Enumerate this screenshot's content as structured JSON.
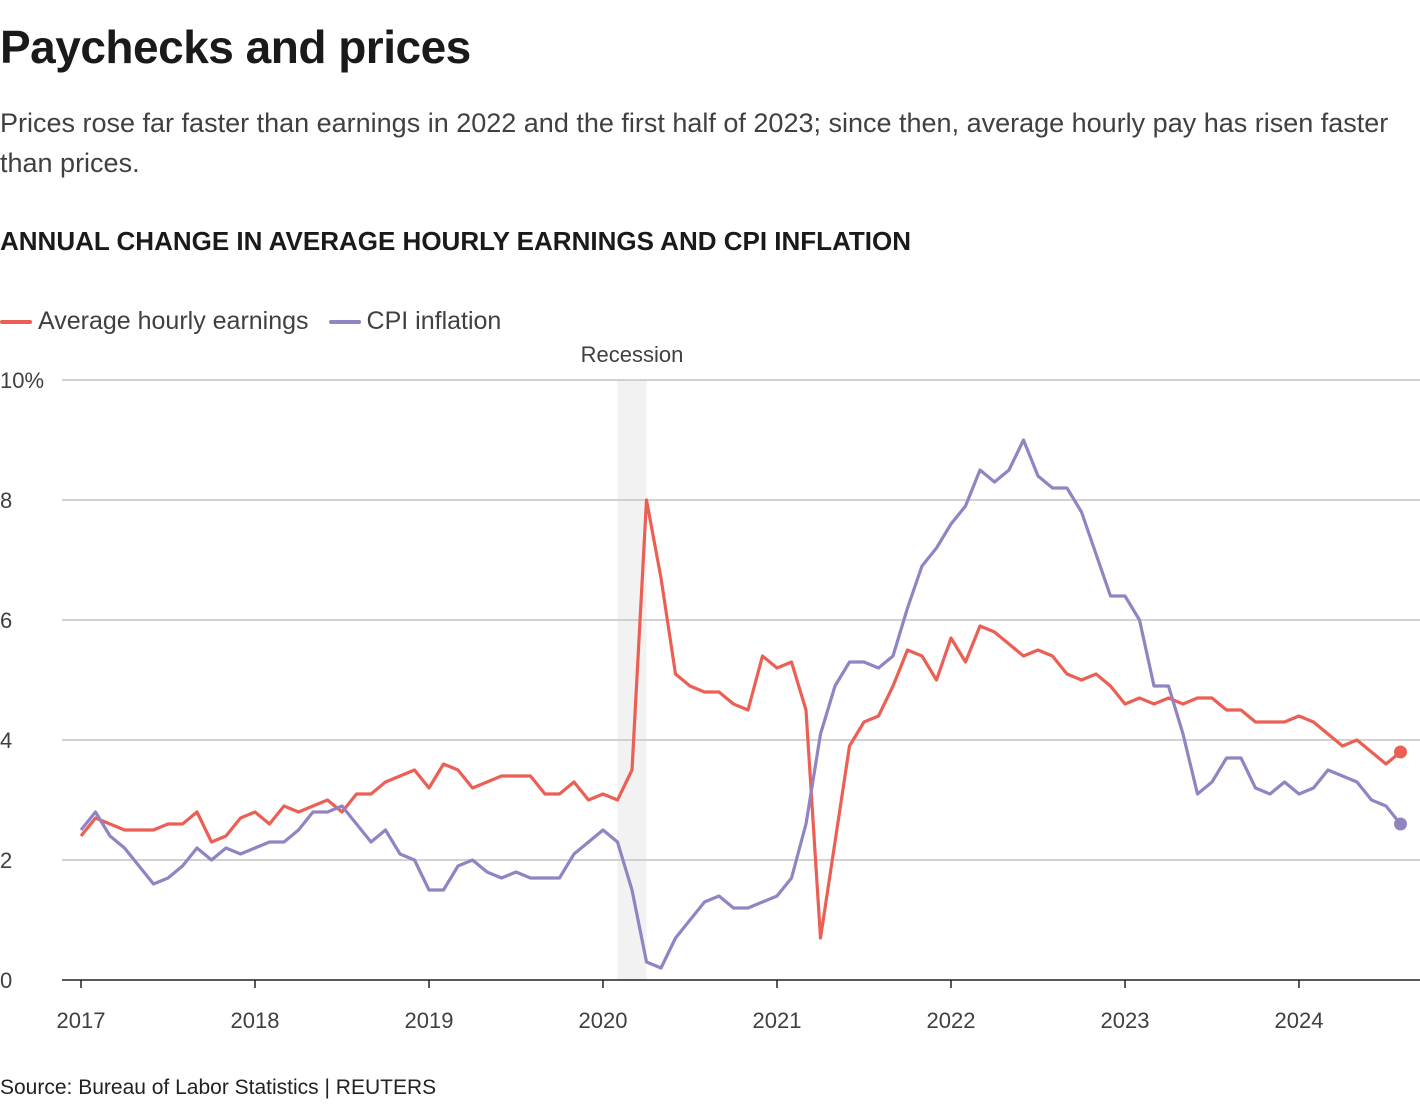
{
  "title": "Paychecks and prices",
  "subtitle": "Prices rose far faster than earnings in 2022 and the first half of 2023; since then, average hourly pay has risen faster than prices.",
  "source": "Source: Bureau of Labor Statistics | REUTERS",
  "chart_data": {
    "type": "line",
    "title": "ANNUAL CHANGE IN AVERAGE HOURLY EARNINGS AND CPI INFLATION",
    "xlabel": "",
    "ylabel": "",
    "x_start": "2017-01",
    "x_frequency": "monthly",
    "x_ticks": [
      "2017",
      "2018",
      "2019",
      "2020",
      "2021",
      "2022",
      "2023",
      "2024"
    ],
    "y_ticks": [
      "0",
      "2",
      "4",
      "6",
      "8",
      "10%"
    ],
    "ylim": [
      0,
      10
    ],
    "grid": true,
    "legend_placement": "top-left",
    "annotation": {
      "label": "Recession",
      "start": "2020-02",
      "end": "2020-04"
    },
    "series": [
      {
        "name": "Average hourly earnings",
        "color": "#eb5f54",
        "values": [
          2.4,
          2.7,
          2.6,
          2.5,
          2.5,
          2.5,
          2.6,
          2.6,
          2.8,
          2.3,
          2.4,
          2.7,
          2.8,
          2.6,
          2.9,
          2.8,
          2.9,
          3.0,
          2.8,
          3.1,
          3.1,
          3.3,
          3.4,
          3.5,
          3.2,
          3.6,
          3.5,
          3.2,
          3.3,
          3.4,
          3.4,
          3.4,
          3.1,
          3.1,
          3.3,
          3.0,
          3.1,
          3.0,
          3.5,
          8.0,
          6.7,
          5.1,
          4.9,
          4.8,
          4.8,
          4.6,
          4.5,
          5.4,
          5.2,
          5.3,
          4.5,
          0.7,
          2.3,
          3.9,
          4.3,
          4.4,
          4.9,
          5.5,
          5.4,
          5.0,
          5.7,
          5.3,
          5.9,
          5.8,
          5.6,
          5.4,
          5.5,
          5.4,
          5.1,
          5.0,
          5.1,
          4.9,
          4.6,
          4.7,
          4.6,
          4.7,
          4.6,
          4.7,
          4.7,
          4.5,
          4.5,
          4.3,
          4.3,
          4.3,
          4.4,
          4.3,
          4.1,
          3.9,
          4.0,
          3.8,
          3.6,
          3.8
        ]
      },
      {
        "name": "CPI inflation",
        "color": "#9283c3",
        "values": [
          2.5,
          2.8,
          2.4,
          2.2,
          1.9,
          1.6,
          1.7,
          1.9,
          2.2,
          2.0,
          2.2,
          2.1,
          2.2,
          2.3,
          2.3,
          2.5,
          2.8,
          2.8,
          2.9,
          2.6,
          2.3,
          2.5,
          2.1,
          2.0,
          1.5,
          1.5,
          1.9,
          2.0,
          1.8,
          1.7,
          1.8,
          1.7,
          1.7,
          1.7,
          2.1,
          2.3,
          2.5,
          2.3,
          1.5,
          0.3,
          0.2,
          0.7,
          1.0,
          1.3,
          1.4,
          1.2,
          1.2,
          1.3,
          1.4,
          1.7,
          2.6,
          4.1,
          4.9,
          5.3,
          5.3,
          5.2,
          5.4,
          6.2,
          6.9,
          7.2,
          7.6,
          7.9,
          8.5,
          8.3,
          8.5,
          9.0,
          8.4,
          8.2,
          8.2,
          7.8,
          7.1,
          6.4,
          6.4,
          6.0,
          4.9,
          4.9,
          4.1,
          3.1,
          3.3,
          3.7,
          3.7,
          3.2,
          3.1,
          3.3,
          3.1,
          3.2,
          3.5,
          3.4,
          3.3,
          3.0,
          2.9,
          2.6
        ]
      }
    ]
  }
}
